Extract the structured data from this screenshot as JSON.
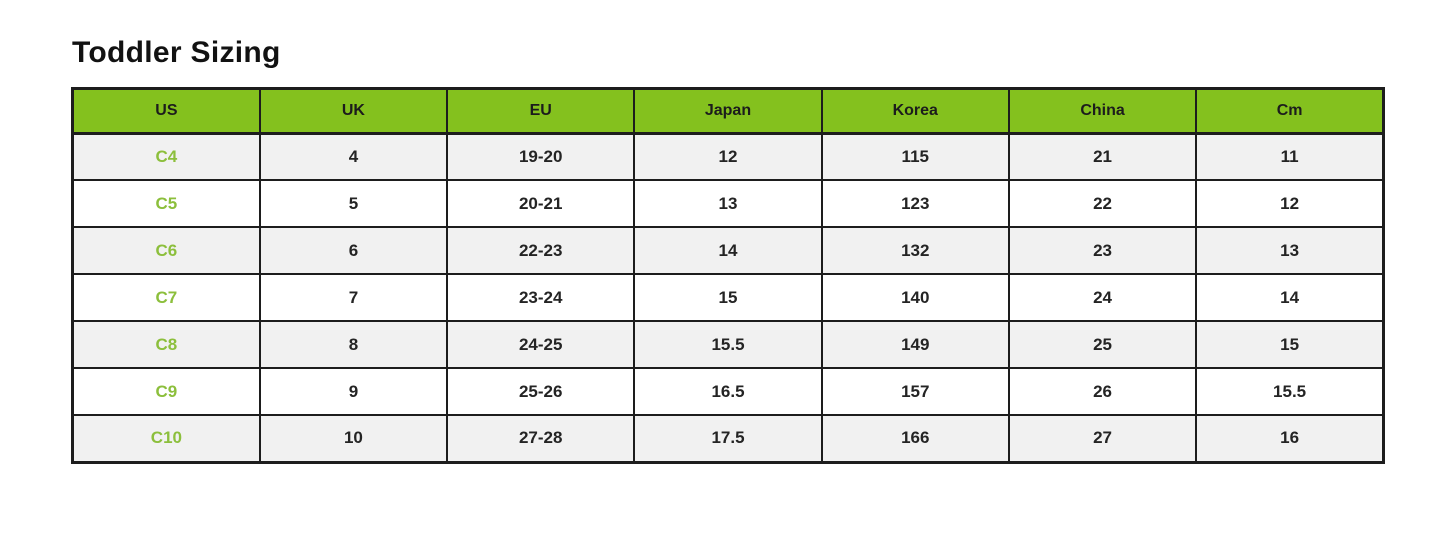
{
  "page": {
    "title": "Toddler Sizing"
  },
  "chart_data": {
    "type": "table",
    "title": "Toddler Sizing",
    "columns": [
      "US",
      "UK",
      "EU",
      "Japan",
      "Korea",
      "China",
      "Cm"
    ],
    "rows": [
      [
        "C4",
        "4",
        "19-20",
        "12",
        "115",
        "21",
        "11"
      ],
      [
        "C5",
        "5",
        "20-21",
        "13",
        "123",
        "22",
        "12"
      ],
      [
        "C6",
        "6",
        "22-23",
        "14",
        "132",
        "23",
        "13"
      ],
      [
        "C7",
        "7",
        "23-24",
        "15",
        "140",
        "24",
        "14"
      ],
      [
        "C8",
        "8",
        "24-25",
        "15.5",
        "149",
        "25",
        "15"
      ],
      [
        "C9",
        "9",
        "25-26",
        "16.5",
        "157",
        "26",
        "15.5"
      ],
      [
        "C10",
        "10",
        "27-28",
        "17.5",
        "166",
        "27",
        "16"
      ]
    ],
    "layout": {
      "header_fill": "green",
      "row_striping": "odd rows light gray, even rows white",
      "grid": "on"
    }
  },
  "colors": {
    "header_bg": "#84c11e",
    "header_text": "#1c1c1c",
    "us_column_text": "#8cbf3c",
    "row_stripe": "#f1f1f1",
    "border": "#1d1d1d",
    "title_text": "#121212",
    "cell_text": "#242424"
  }
}
